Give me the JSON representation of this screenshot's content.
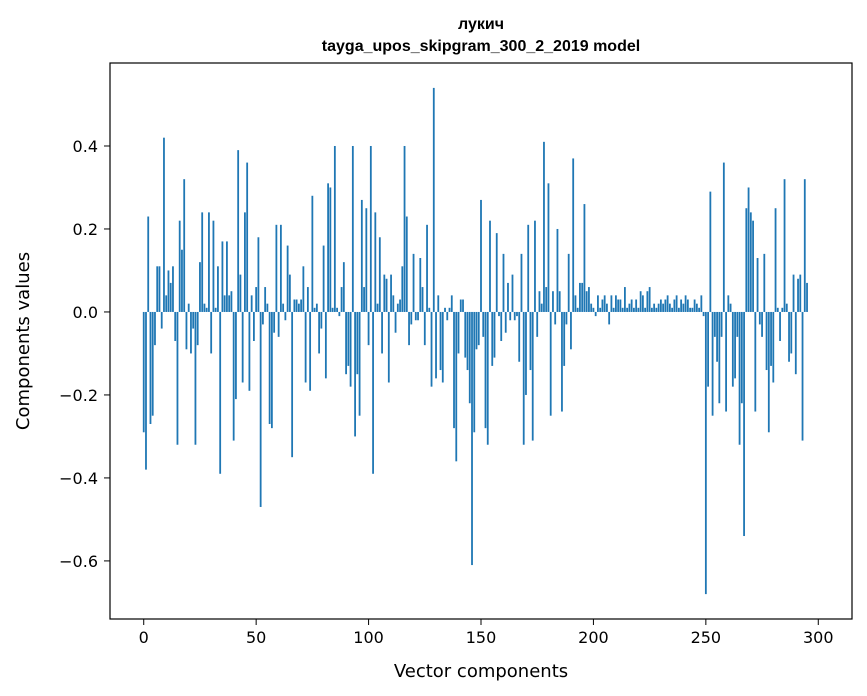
{
  "chart_data": {
    "type": "bar",
    "title": "лукич",
    "subtitle": "tayga_upos_skipgram_300_2_2019 model",
    "xlabel": "Vector components",
    "ylabel": "Components values",
    "xlim": [
      -15,
      315
    ],
    "ylim": [
      -0.74,
      0.6
    ],
    "xticks": [
      0,
      50,
      100,
      150,
      200,
      250,
      300
    ],
    "yticks": [
      -0.6,
      -0.4,
      -0.2,
      0.0,
      0.2,
      0.4
    ],
    "ytick_labels": [
      "−0.6",
      "−0.4",
      "−0.2",
      "0.0",
      "0.2",
      "0.4"
    ],
    "xtick_labels": [
      "0",
      "50",
      "100",
      "150",
      "200",
      "250",
      "300"
    ],
    "grid": false,
    "bar_color": "#1f77b4",
    "series": [
      {
        "name": "лукич",
        "values": [
          -0.29,
          -0.38,
          0.23,
          -0.27,
          -0.25,
          -0.08,
          0.11,
          0.11,
          -0.04,
          0.42,
          0.04,
          0.1,
          0.07,
          0.11,
          -0.07,
          -0.32,
          0.22,
          0.15,
          0.32,
          -0.09,
          0.02,
          -0.1,
          -0.04,
          -0.32,
          -0.08,
          0.12,
          0.24,
          0.02,
          0.01,
          0.24,
          -0.1,
          0.22,
          0.01,
          0.11,
          -0.39,
          0.17,
          0.04,
          0.17,
          0.04,
          0.05,
          -0.31,
          -0.21,
          0.39,
          0.09,
          -0.17,
          0.24,
          0.36,
          -0.19,
          0.04,
          -0.07,
          0.06,
          0.18,
          -0.47,
          -0.03,
          0.06,
          0.02,
          -0.27,
          -0.28,
          -0.05,
          0.21,
          -0.06,
          0.21,
          0.02,
          -0.02,
          0.16,
          0.09,
          -0.35,
          0.03,
          0.03,
          0.02,
          0.03,
          0.11,
          -0.17,
          0.06,
          -0.19,
          0.28,
          0.01,
          0.02,
          -0.1,
          -0.04,
          0.16,
          -0.16,
          0.31,
          0.3,
          0.01,
          0.4,
          0.01,
          -0.01,
          0.06,
          0.12,
          -0.15,
          -0.13,
          -0.18,
          0.4,
          -0.3,
          -0.15,
          -0.25,
          0.27,
          0.06,
          0.25,
          -0.08,
          0.4,
          -0.39,
          0.24,
          0.02,
          0.18,
          -0.1,
          0.09,
          0.08,
          -0.17,
          0.09,
          0.04,
          -0.05,
          0.02,
          0.03,
          0.11,
          0.4,
          0.23,
          -0.08,
          -0.03,
          0.14,
          -0.02,
          -0.02,
          0.13,
          0.06,
          -0.08,
          0.21,
          0.01,
          -0.18,
          0.54,
          -0.16,
          0.04,
          -0.14,
          -0.17,
          0.01,
          -0.02,
          0.01,
          0.04,
          -0.28,
          -0.36,
          -0.1,
          0.03,
          0.03,
          -0.11,
          -0.14,
          -0.22,
          -0.61,
          -0.29,
          -0.09,
          -0.08,
          0.27,
          -0.06,
          -0.28,
          -0.32,
          0.22,
          -0.13,
          -0.11,
          0.19,
          -0.01,
          -0.07,
          0.14,
          -0.05,
          0.07,
          -0.02,
          0.09,
          -0.02,
          -0.01,
          -0.12,
          0.14,
          -0.32,
          -0.2,
          0.21,
          -0.14,
          -0.31,
          0.22,
          -0.06,
          0.05,
          0.02,
          0.41,
          0.06,
          0.31,
          -0.25,
          0.05,
          -0.03,
          0.2,
          0.05,
          -0.24,
          -0.13,
          -0.03,
          0.14,
          -0.09,
          0.37,
          0.04,
          0.01,
          0.07,
          0.07,
          0.26,
          0.05,
          0.06,
          0.02,
          0.01,
          -0.01,
          0.04,
          0.01,
          0.03,
          0.04,
          0.02,
          -0.03,
          0.04,
          0.01,
          0.04,
          0.03,
          0.03,
          0.01,
          0.06,
          0.01,
          0.02,
          0.03,
          0.01,
          0.03,
          0.01,
          0.05,
          0.04,
          0.01,
          0.05,
          0.06,
          0.01,
          0.02,
          0.01,
          0.02,
          0.03,
          0.02,
          0.03,
          0.04,
          0.02,
          0.01,
          0.03,
          0.04,
          0.01,
          0.03,
          0.02,
          0.04,
          0.03,
          0.01,
          0.01,
          0.03,
          0.02,
          0.01,
          0.04,
          -0.01,
          -0.68,
          -0.18,
          0.29,
          -0.25,
          -0.06,
          -0.12,
          -0.22,
          -0.06,
          0.36,
          -0.24,
          0.04,
          0.02,
          -0.18,
          -0.16,
          -0.06,
          -0.32,
          -0.22,
          -0.54,
          0.25,
          0.3,
          0.24,
          0.22,
          -0.24,
          0.13,
          -0.03,
          -0.06,
          0.14,
          -0.14,
          -0.29,
          -0.13,
          -0.17,
          0.25,
          0.01,
          -0.07,
          0.01,
          0.32,
          0.02,
          -0.12,
          -0.1,
          0.09,
          -0.15,
          0.08,
          0.09,
          -0.31,
          0.32,
          0.07
        ]
      }
    ]
  }
}
